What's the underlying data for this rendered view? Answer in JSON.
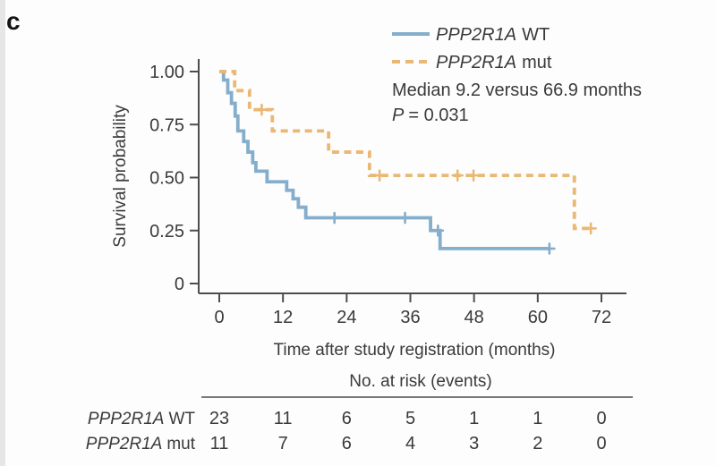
{
  "panel_label": "c",
  "colors": {
    "wt_line": "#84aecb",
    "mut_line": "#e9b873",
    "text": "#3a3a3a",
    "axis": "#4d4d4d",
    "background": "#fdfdfd"
  },
  "legend": {
    "entries": [
      {
        "gene": "PPP2R1A",
        "suffix": "WT",
        "style": "solid"
      },
      {
        "gene": "PPP2R1A",
        "suffix": "mut",
        "style": "dashed"
      }
    ],
    "median_text": "Median 9.2 versus 66.9 months",
    "p_italic": "P",
    "p_rest": "= 0.031"
  },
  "axes": {
    "y_title": "Survival probability",
    "x_title": "Time after study registration (months)",
    "y_tick_labels": [
      "1.00",
      "0.75",
      "0.50",
      "0.25",
      "0"
    ],
    "x_tick_labels": [
      "0",
      "12",
      "24",
      "36",
      "48",
      "60",
      "72"
    ]
  },
  "risk_table": {
    "header": "No. at risk (events)",
    "rows": [
      {
        "gene": "PPP2R1A",
        "suffix": "WT",
        "values": [
          "23",
          "11",
          "6",
          "5",
          "1",
          "1",
          "0"
        ]
      },
      {
        "gene": "PPP2R1A",
        "suffix": "mut",
        "values": [
          "11",
          "7",
          "6",
          "4",
          "3",
          "2",
          "0"
        ]
      }
    ]
  },
  "chart_data": {
    "type": "line",
    "subtype": "kaplan-meier-step",
    "title": "",
    "xlabel": "Time after study registration (months)",
    "ylabel": "Survival probability",
    "xlim": [
      0,
      72
    ],
    "ylim": [
      0,
      1
    ],
    "xticks": [
      0,
      12,
      24,
      36,
      48,
      60,
      72
    ],
    "yticks": [
      1.0,
      0.75,
      0.5,
      0.25,
      0
    ],
    "grid": false,
    "legend_position": "top-right",
    "p_value": 0.031,
    "series": [
      {
        "name": "PPP2R1A WT",
        "color": "#84aecb",
        "dash": "solid",
        "median_months": 9.2,
        "steps": [
          [
            0,
            1.0
          ],
          [
            0.8,
            0.96
          ],
          [
            1.6,
            0.9
          ],
          [
            2.3,
            0.85
          ],
          [
            3.0,
            0.79
          ],
          [
            3.5,
            0.72
          ],
          [
            4.6,
            0.67
          ],
          [
            5.4,
            0.62
          ],
          [
            6.3,
            0.57
          ],
          [
            6.9,
            0.53
          ],
          [
            9.0,
            0.48
          ],
          [
            12.7,
            0.44
          ],
          [
            13.9,
            0.4
          ],
          [
            14.9,
            0.36
          ],
          [
            16.3,
            0.31
          ],
          [
            39.8,
            0.25
          ],
          [
            41.6,
            0.165
          ]
        ],
        "end_time": 62.2,
        "censors": [
          [
            21.7,
            0.31
          ],
          [
            35.0,
            0.31
          ],
          [
            41.2,
            0.25
          ],
          [
            62.2,
            0.165
          ]
        ]
      },
      {
        "name": "PPP2R1A mut",
        "color": "#e9b873",
        "dash": "dashed",
        "median_months": 66.9,
        "steps": [
          [
            0,
            1.0
          ],
          [
            2.9,
            0.91
          ],
          [
            5.7,
            0.82
          ],
          [
            10.0,
            0.72
          ],
          [
            20.6,
            0.62
          ],
          [
            28.3,
            0.51
          ],
          [
            66.9,
            0.26
          ]
        ],
        "end_time": 70.5,
        "censors": [
          [
            8.0,
            0.82
          ],
          [
            30.2,
            0.51
          ],
          [
            44.9,
            0.51
          ],
          [
            47.9,
            0.51
          ],
          [
            70.0,
            0.26
          ]
        ]
      }
    ]
  }
}
